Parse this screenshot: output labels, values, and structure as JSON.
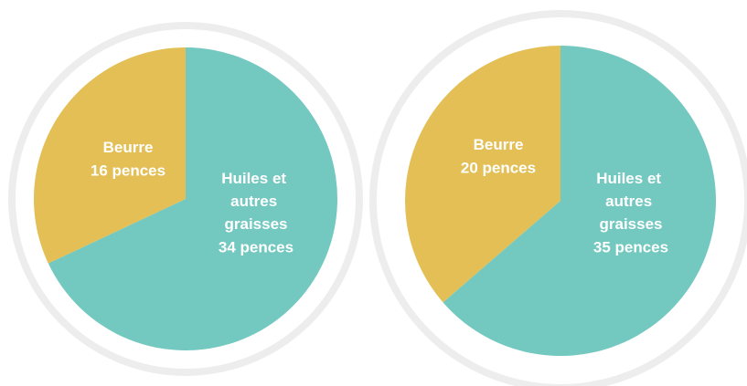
{
  "chart_data": [
    {
      "type": "pie",
      "categories": [
        "Huiles et autres graisses",
        "Beurre"
      ],
      "values": [
        34,
        16
      ],
      "value_labels": [
        "34 pences",
        "16 pences"
      ],
      "colors": [
        "#73c8c0",
        "#e3bf55"
      ]
    },
    {
      "type": "pie",
      "categories": [
        "Huiles et autres graisses",
        "Beurre"
      ],
      "values": [
        35,
        20
      ],
      "value_labels": [
        "35 pences",
        "20 pences"
      ],
      "colors": [
        "#73c8c0",
        "#e3bf55"
      ]
    }
  ]
}
